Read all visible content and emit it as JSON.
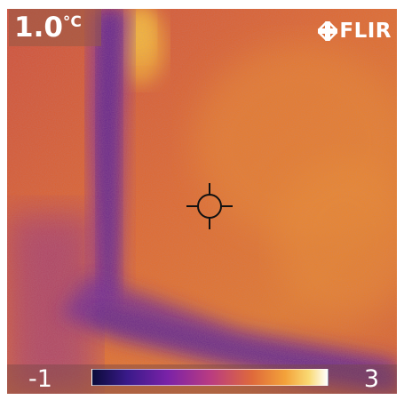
{
  "readout": {
    "value": "1.0",
    "unit": "°C"
  },
  "brand": {
    "name": "FLIR",
    "icon": "flir-logo-icon"
  },
  "scale": {
    "min": "-1",
    "max": "3"
  },
  "colors": {
    "palette_low": "#0b0b3a",
    "palette_mid": "#b93b82",
    "palette_high": "#ffffff",
    "background_warm": "#d85a2b",
    "cold_band": "#5a2a9a"
  },
  "icons": {
    "crosshair": "crosshair-icon"
  }
}
